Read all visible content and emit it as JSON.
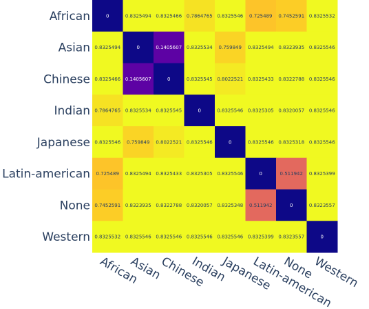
{
  "chart_data": {
    "type": "heatmap",
    "x_categories": [
      "African",
      "Asian",
      "Chinese",
      "Indian",
      "Japanese",
      "Latin-american",
      "None",
      "Western"
    ],
    "y_categories": [
      "African",
      "Asian",
      "Chinese",
      "Indian",
      "Japanese",
      "Latin-american",
      "None",
      "Western"
    ],
    "values": [
      [
        0,
        0.8325494,
        0.8325466,
        0.7864765,
        0.8325546,
        0.725489,
        0.7452591,
        0.8325532
      ],
      [
        0.8325494,
        0,
        0.1405607,
        0.8325534,
        0.759849,
        0.8325494,
        0.8323935,
        0.8325546
      ],
      [
        0.8325466,
        0.1405607,
        0,
        0.8325545,
        0.8022521,
        0.8325433,
        0.8322788,
        0.8325546
      ],
      [
        0.7864765,
        0.8325534,
        0.8325545,
        0,
        0.8325546,
        0.8325305,
        0.8320057,
        0.8325546
      ],
      [
        0.8325546,
        0.759849,
        0.8022521,
        0.8325546,
        0,
        0.8325546,
        0.8325318,
        0.8325546
      ],
      [
        0.725489,
        0.8325494,
        0.8325433,
        0.8325305,
        0.8325546,
        0,
        0.511942,
        0.8325399
      ],
      [
        0.7452591,
        0.8323935,
        0.8322788,
        0.8320057,
        0.8325348,
        0.511942,
        0,
        0.8323557
      ],
      [
        0.8325532,
        0.8325546,
        0.8325546,
        0.8325546,
        0.8325546,
        0.8325399,
        0.8323557,
        0
      ]
    ],
    "labels": [
      [
        "0",
        "0.8325494",
        "0.8325466",
        "0.7864765",
        "0.8325546",
        "0.725489",
        "0.7452591",
        "0.8325532"
      ],
      [
        "0.8325494",
        "0",
        "0.1405607",
        "0.8325534",
        "0.759849",
        "0.8325494",
        "0.8323935",
        "0.8325546"
      ],
      [
        "0.8325466",
        "0.1405607",
        "0",
        "0.8325545",
        "0.8022521",
        "0.8325433",
        "0.8322788",
        "0.8325546"
      ],
      [
        "0.7864765",
        "0.8325534",
        "0.8325545",
        "0",
        "0.8325546",
        "0.8325305",
        "0.8320057",
        "0.8325546"
      ],
      [
        "0.8325546",
        "0.759849",
        "0.8022521",
        "0.8325546",
        "0",
        "0.8325546",
        "0.8325318",
        "0.8325546"
      ],
      [
        "0.725489",
        "0.8325494",
        "0.8325433",
        "0.8325305",
        "0.8325546",
        "0",
        "0.511942",
        "0.8325399"
      ],
      [
        "0.7452591",
        "0.8323935",
        "0.8322788",
        "0.8320057",
        "0.8325348",
        "0.511942",
        "0",
        "0.8323557"
      ],
      [
        "0.8325532",
        "0.8325546",
        "0.8325546",
        "0.8325546",
        "0.8325546",
        "0.8325399",
        "0.8323557",
        "0"
      ]
    ],
    "zrange": [
      0,
      0.8325546
    ],
    "colorscale": "plasma",
    "title": "",
    "xlabel": "",
    "ylabel": ""
  }
}
